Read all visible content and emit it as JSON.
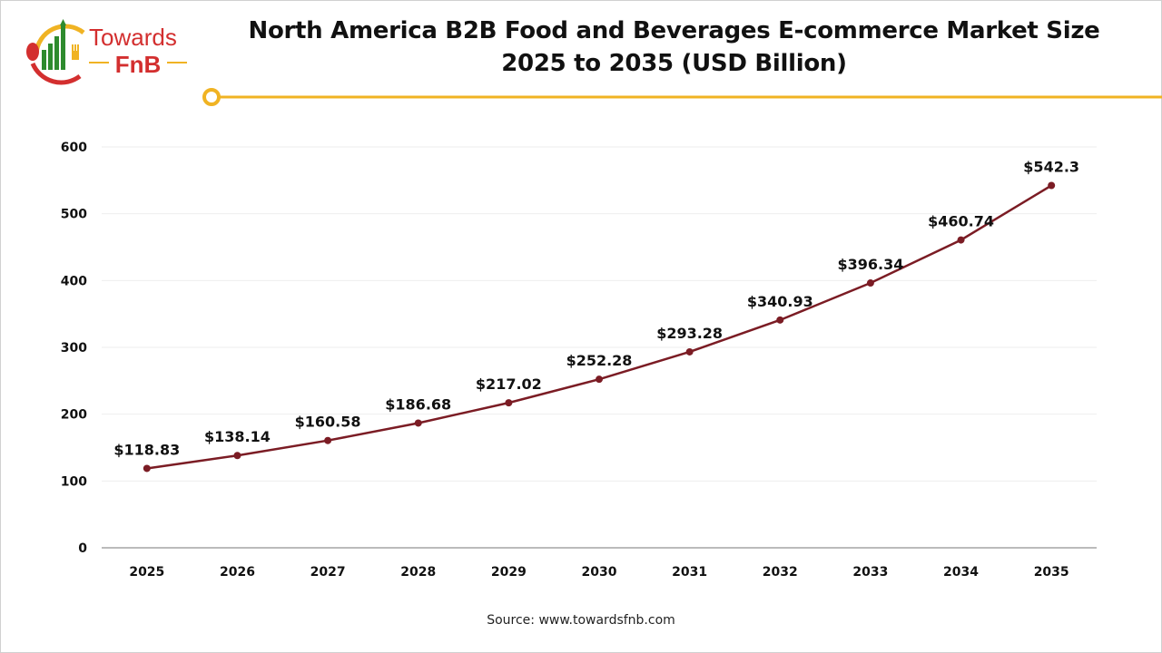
{
  "logo": {
    "text_line1": "Towards",
    "text_line2": "FnB"
  },
  "colors": {
    "line": "#7b1c24",
    "accent": "#f0b323",
    "logo_red": "#d32f2f",
    "logo_green": "#2e8b2e",
    "grid": "#eeeeee"
  },
  "source": "Source: www.towardsfnb.com",
  "chart_data": {
    "type": "line",
    "title": "North America B2B Food and Beverages E-commerce Market Size 2025 to 2035 (USD Billion)",
    "title_line1": "North America B2B Food and Beverages E-commerce Market Size",
    "title_line2": "2025 to 2035 (USD Billion)",
    "categories": [
      "2025",
      "2026",
      "2027",
      "2028",
      "2029",
      "2030",
      "2031",
      "2032",
      "2033",
      "2034",
      "2035"
    ],
    "values": [
      118.83,
      138.14,
      160.58,
      186.68,
      217.02,
      252.28,
      293.28,
      340.93,
      396.34,
      460.74,
      542.3
    ],
    "data_labels": [
      "$118.83",
      "$138.14",
      "$160.58",
      "$186.68",
      "$217.02",
      "$252.28",
      "$293.28",
      "$340.93",
      "$396.34",
      "$460.74",
      "$542.3"
    ],
    "ylim": [
      0,
      600
    ],
    "yticks": [
      "0",
      "100",
      "200",
      "300",
      "400",
      "500",
      "600"
    ],
    "grid": true,
    "xlabel": "",
    "ylabel": ""
  }
}
